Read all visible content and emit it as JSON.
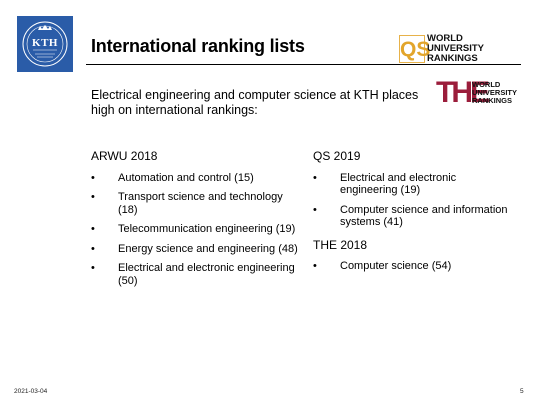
{
  "colors": {
    "kth_blue": "#2a5ca8",
    "qs_gold": "#e2a52b",
    "the_red": "#9b1d3b"
  },
  "logos": {
    "kth": {
      "text": "KTH",
      "icon": "kth-crest-icon"
    },
    "qs": {
      "mark": "QS",
      "lines": [
        "WORLD",
        "UNIVERSITY",
        "RANKINGS"
      ]
    },
    "the": {
      "mark": "THE",
      "lines": [
        "WORLD",
        "UNIVERSITY",
        "RANKINGS"
      ]
    }
  },
  "title": "International ranking lists",
  "intro": "Electrical engineering and computer science at KTH places high on international rankings:",
  "arwu": {
    "heading": "ARWU 2018",
    "items": [
      "Automation and control (15)",
      "Transport science and technology (18)",
      "Telecommunication engineering (19)",
      "Energy science and engineering (48)",
      "Electrical and electronic engineering (50)"
    ]
  },
  "qs": {
    "heading": "QS 2019",
    "items": [
      "Electrical and electronic engineering (19)",
      "Computer science and information systems (41)"
    ]
  },
  "the": {
    "heading": "THE 2018",
    "items": [
      "Computer science (54)"
    ]
  },
  "bullet": "•",
  "footer": {
    "date": "2021-03-04",
    "page": "5"
  }
}
